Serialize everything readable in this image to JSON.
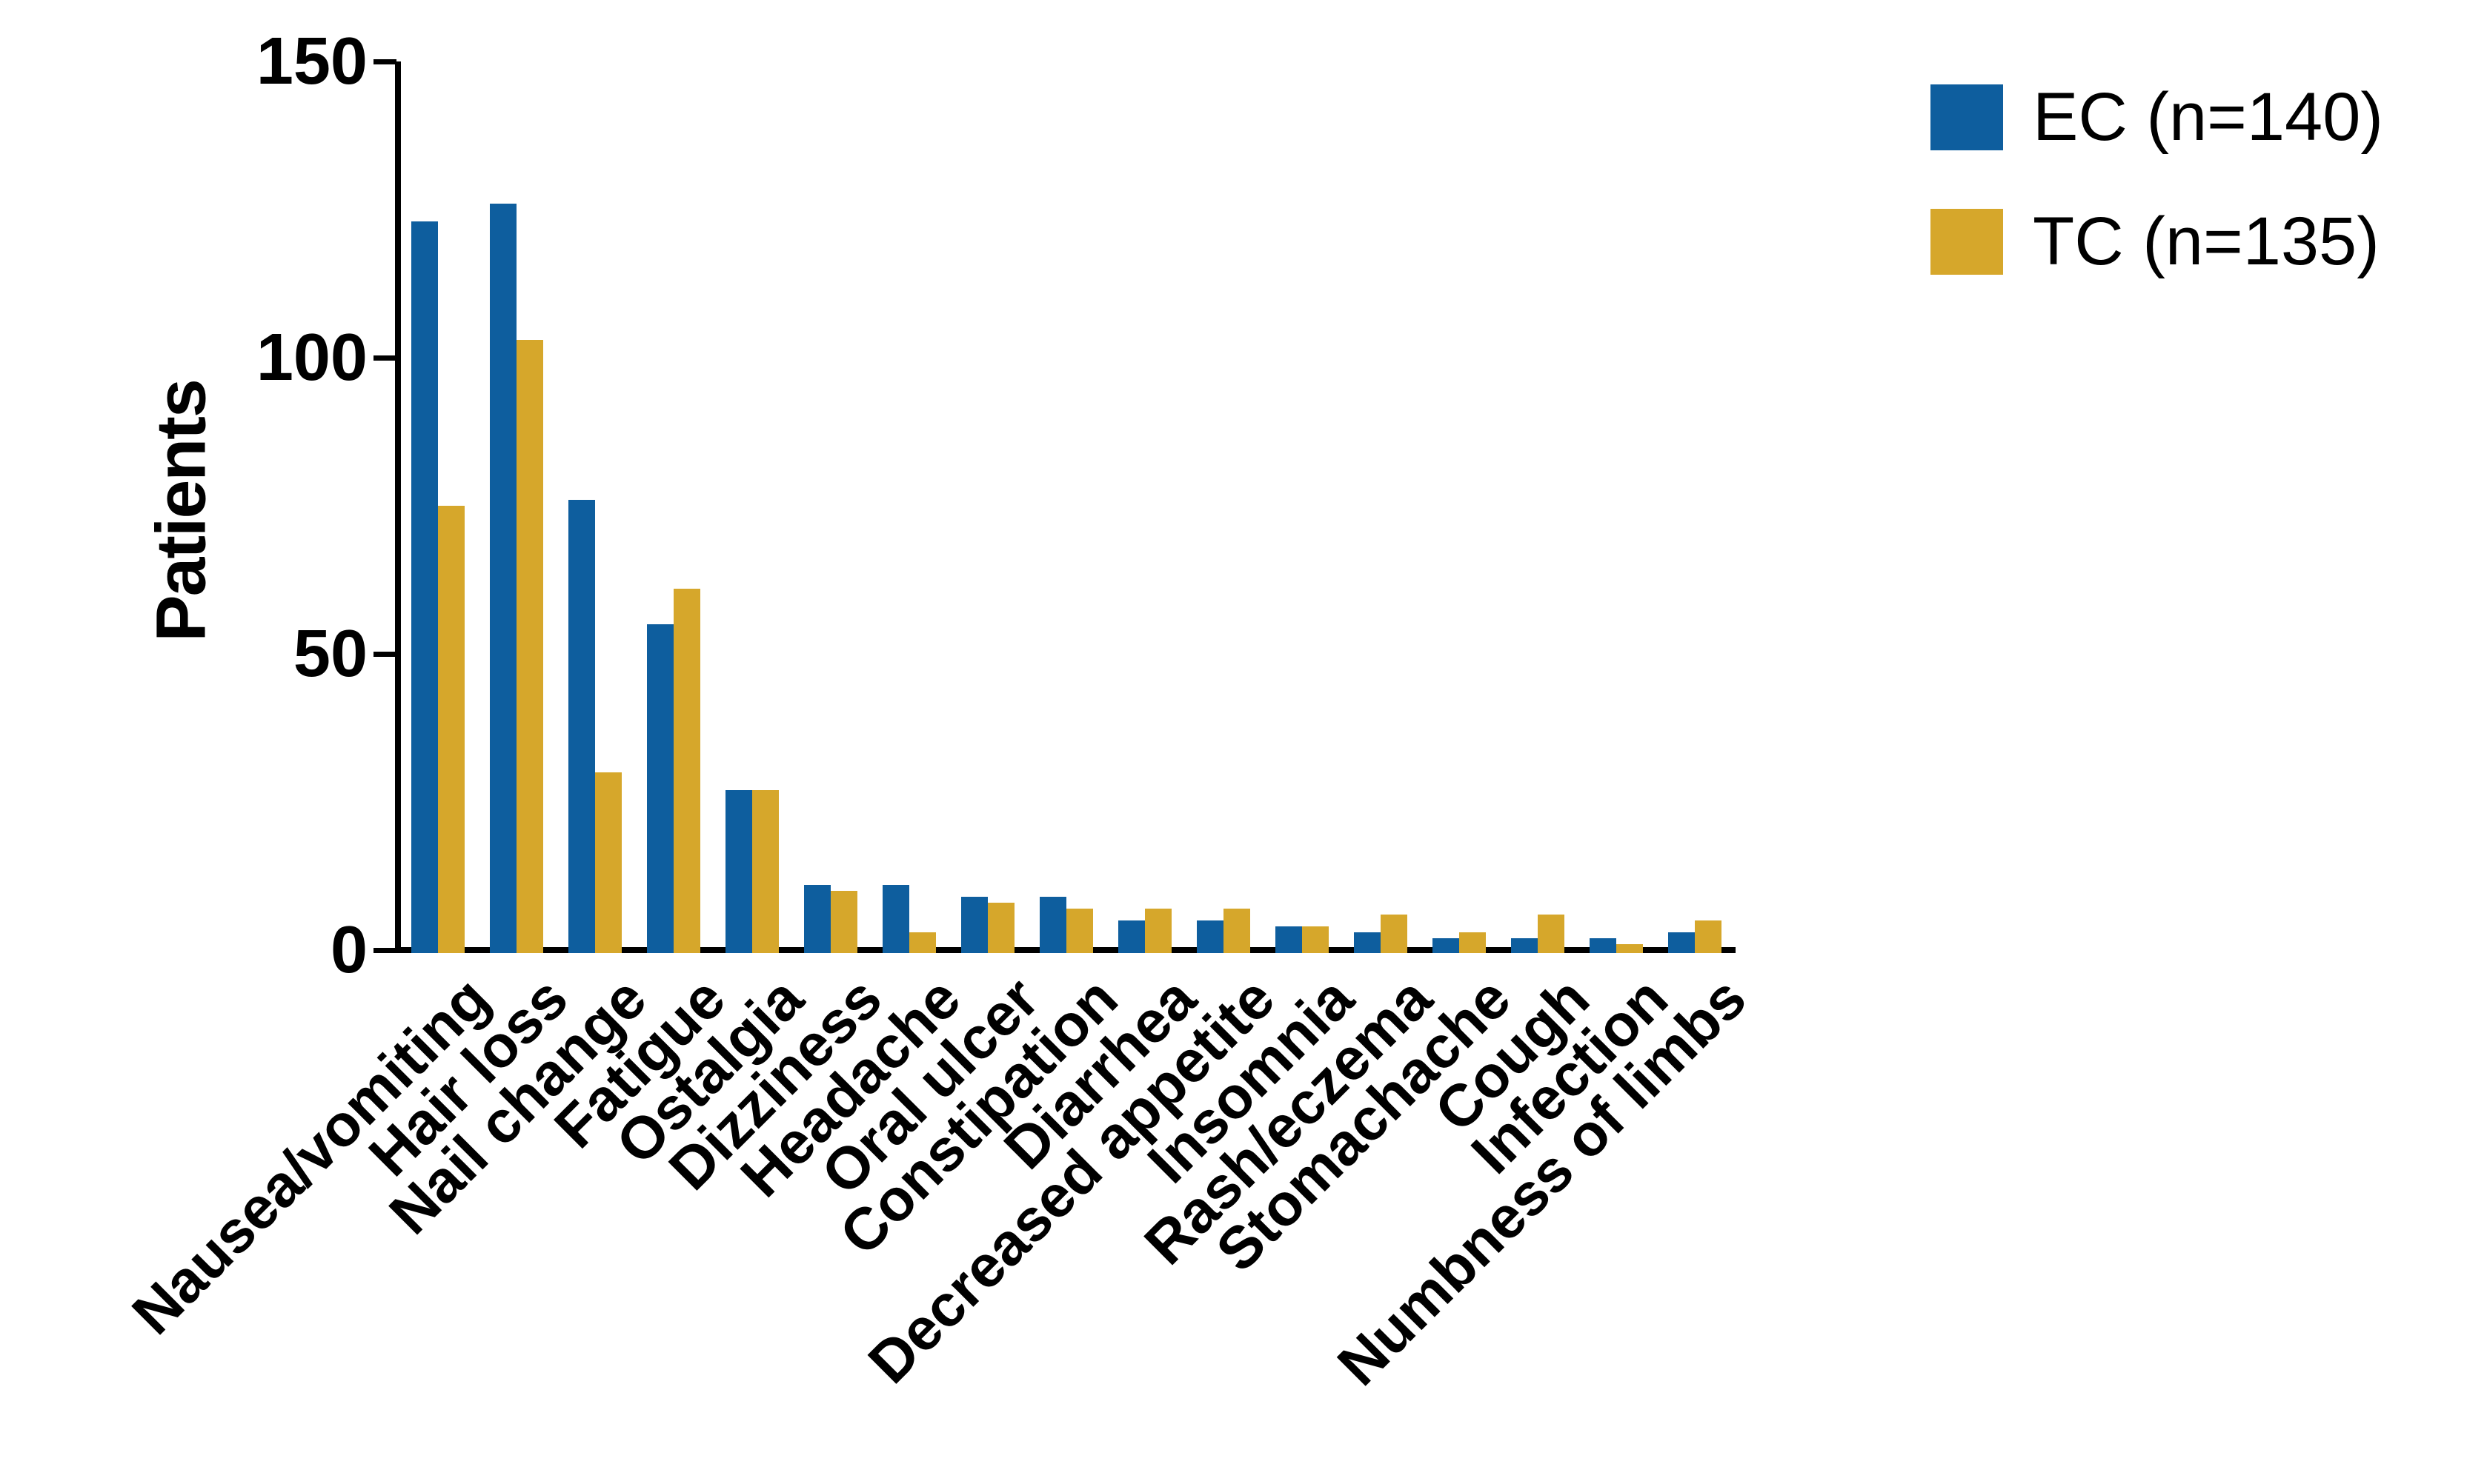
{
  "chart_data": {
    "type": "bar",
    "title": "",
    "ylabel": "Patients",
    "xlabel": "",
    "ylim": [
      0,
      150
    ],
    "yticks": [
      0,
      50,
      100,
      150
    ],
    "grid": false,
    "legend_position": "top-right",
    "category_label_rotation_deg": 45,
    "categories": [
      "Nausea/vomiting",
      "Hair loss",
      "Nail change",
      "Fatigue",
      "Ostalgia",
      "Dizziness",
      "Headache",
      "Oral ulcer",
      "Constipation",
      "Diarrhea",
      "Decreased appetite",
      "Insomnia",
      "Rash/eczema",
      "Stomachache",
      "Cough",
      "Infection",
      "Numbness of limbs"
    ],
    "series": [
      {
        "name": "EC (n=140)",
        "color": "#0E5E9E",
        "values": [
          123,
          126,
          76,
          55,
          27,
          11,
          11,
          9,
          9,
          5,
          5,
          4,
          3,
          2,
          2,
          2,
          3
        ]
      },
      {
        "name": "TC (n=135)",
        "color": "#D6A72B",
        "values": [
          75,
          103,
          30,
          61,
          27,
          10,
          3,
          8,
          7,
          7,
          7,
          4,
          6,
          3,
          6,
          1,
          5
        ]
      }
    ],
    "axis_color": "#000000",
    "text_color": "#000000"
  }
}
